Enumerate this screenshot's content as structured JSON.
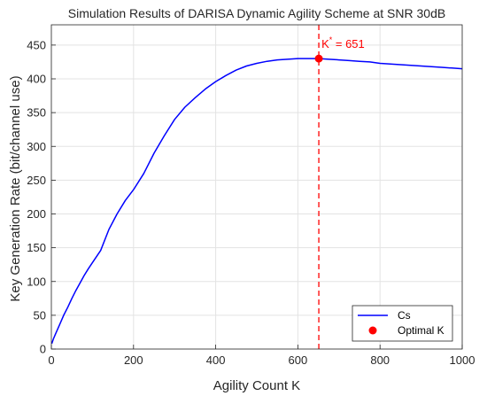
{
  "chart_data": {
    "type": "line",
    "title": "Simulation Results of DARISA Dynamic Agility Scheme at SNR 30dB",
    "xlabel": "Agility Count K",
    "ylabel": "Key Generation Rate (bit/channel use)",
    "xlim": [
      0,
      1000
    ],
    "ylim": [
      0,
      480
    ],
    "xticks": [
      0,
      200,
      400,
      600,
      800,
      1000
    ],
    "yticks": [
      0,
      50,
      100,
      150,
      200,
      250,
      300,
      350,
      400,
      450
    ],
    "grid": true,
    "legend_position": "bottom-right",
    "series": [
      {
        "name": "Cs",
        "color": "#0000ff",
        "x": [
          1,
          5,
          10,
          20,
          30,
          40,
          50,
          60,
          70,
          80,
          90,
          100,
          120,
          140,
          160,
          180,
          200,
          225,
          250,
          275,
          300,
          325,
          350,
          375,
          400,
          425,
          450,
          475,
          500,
          525,
          550,
          575,
          600,
          625,
          651,
          675,
          700,
          725,
          750,
          775,
          800,
          825,
          850,
          875,
          900,
          925,
          950,
          975,
          1000
        ],
        "y": [
          8,
          15,
          22,
          36,
          50,
          62,
          75,
          87,
          98,
          109,
          119,
          128,
          146,
          177,
          200,
          220,
          236,
          260,
          290,
          316,
          340,
          358,
          372,
          385,
          396,
          405,
          413,
          419,
          423,
          426,
          428,
          429,
          430,
          430,
          430,
          429,
          428,
          427,
          426,
          425,
          423,
          422,
          421,
          420,
          419,
          418,
          417,
          416,
          415
        ]
      }
    ],
    "optimal_point": {
      "name": "Optimal K",
      "x": 651,
      "y": 430,
      "color": "#ff0000"
    },
    "vline": {
      "x": 651,
      "color": "#ff0000",
      "style": "dashed"
    },
    "annotation": {
      "base": "K",
      "sup": "*",
      "rest": " = 651",
      "color": "#ff0000"
    }
  }
}
